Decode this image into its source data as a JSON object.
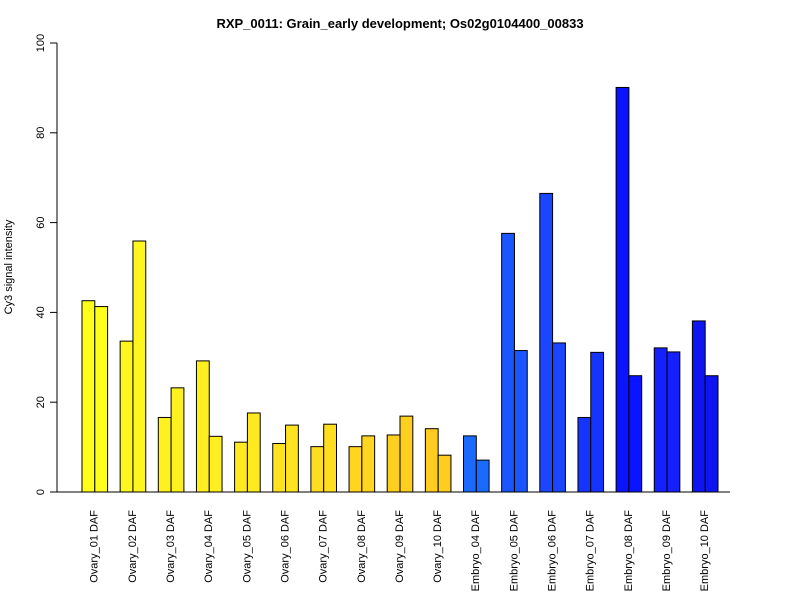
{
  "chart_data": {
    "type": "bar",
    "title": "RXP_0011: Grain_early development; Os02g0104400_00833",
    "xlabel": "",
    "ylabel": "Cy3 signal intensity",
    "ylim": [
      0,
      100
    ],
    "yticks": [
      0,
      20,
      40,
      60,
      80,
      100
    ],
    "grid": false,
    "legend": "none",
    "categories": [
      "Ovary_01 DAF",
      "Ovary_02 DAF",
      "Ovary_03 DAF",
      "Ovary_04 DAF",
      "Ovary_05 DAF",
      "Ovary_06 DAF",
      "Ovary_07 DAF",
      "Ovary_08 DAF",
      "Ovary_09 DAF",
      "Ovary_10 DAF",
      "Embryo_04 DAF",
      "Embryo_05 DAF",
      "Embryo_06 DAF",
      "Embryo_07 DAF",
      "Embryo_08 DAF",
      "Embryo_09 DAF",
      "Embryo_10 DAF"
    ],
    "colors": [
      "#FFFF1A",
      "#FFF51F",
      "#FFF020",
      "#FFEE20",
      "#FFE920",
      "#FFE320",
      "#FFDD20",
      "#FFD520",
      "#FFCF20",
      "#FFCC20",
      "#1A6AFF",
      "#1A55FF",
      "#1A46FF",
      "#1535FF",
      "#0A14FF",
      "#1520FF",
      "#0F15F0"
    ],
    "series": [
      {
        "values": [
          42.6,
          33.6,
          16.6,
          29.2,
          11.1,
          10.8,
          10.1,
          10.1,
          12.7,
          14.1,
          12.5,
          57.6,
          66.5,
          16.6,
          90.1,
          32.1,
          38.1
        ]
      },
      {
        "values": [
          41.3,
          55.9,
          23.2,
          12.4,
          17.6,
          14.9,
          15.1,
          12.5,
          16.9,
          8.2,
          7.1,
          31.5,
          33.2,
          31.1,
          25.9,
          31.2,
          25.9
        ]
      }
    ]
  }
}
